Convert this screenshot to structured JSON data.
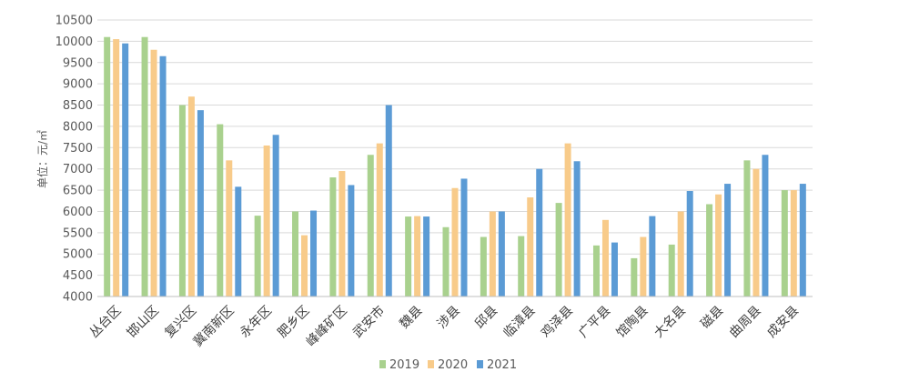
{
  "chart_data": {
    "type": "bar",
    "title": "",
    "xlabel": "",
    "ylabel": "单位：元/㎡",
    "ylim": [
      4000,
      10500
    ],
    "yticks": [
      4000,
      4500,
      5000,
      5500,
      6000,
      6500,
      7000,
      7500,
      8000,
      8500,
      9000,
      9500,
      10000,
      10500
    ],
    "grid": true,
    "legend_position": "bottom",
    "categories": [
      "丛台区",
      "邯山区",
      "复兴区",
      "冀南新区",
      "永年区",
      "肥乡区",
      "峰峰矿区",
      "武安市",
      "魏县",
      "涉县",
      "邱县",
      "临漳县",
      "鸡泽县",
      "广平县",
      "馆陶县",
      "大名县",
      "磁县",
      "曲周县",
      "成安县"
    ],
    "series": [
      {
        "name": "2019",
        "color": "#a9d18e",
        "values": [
          10100,
          10100,
          8500,
          8050,
          5900,
          6000,
          6800,
          7330,
          5880,
          5630,
          5400,
          5420,
          6200,
          5200,
          4900,
          5220,
          6170,
          7200,
          6500
        ]
      },
      {
        "name": "2020",
        "color": "#f8cb8a",
        "values": [
          10050,
          9800,
          8700,
          7200,
          7550,
          5440,
          6950,
          7600,
          5890,
          6550,
          6000,
          6330,
          7600,
          5800,
          5400,
          6000,
          6400,
          7000,
          6500
        ]
      },
      {
        "name": "2021",
        "color": "#5b9bd5",
        "values": [
          9950,
          9650,
          8380,
          6580,
          7800,
          6020,
          6620,
          8500,
          5880,
          6770,
          6000,
          7000,
          7180,
          5270,
          5890,
          6480,
          6650,
          7330,
          6650
        ]
      }
    ]
  }
}
